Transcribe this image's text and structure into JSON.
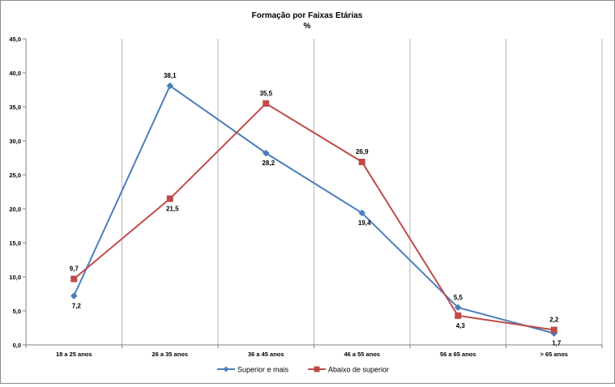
{
  "chart_data": {
    "type": "line",
    "title": "Formação por Faixas Etárias",
    "subtitle": "%",
    "categories": [
      "18 a 25 anos",
      "26 a 35 anos",
      "36 a 45 anos",
      "46 a 55 anos",
      "56 a 65 anos",
      "> 65 anos"
    ],
    "ylim": [
      0,
      45
    ],
    "y_ticks": [
      "0,0",
      "5,0",
      "10,0",
      "15,0",
      "20,0",
      "25,0",
      "30,0",
      "35,0",
      "40,0",
      "45,0"
    ],
    "grid": "vertical",
    "legend_position": "bottom",
    "series": [
      {
        "name": "Superior e mais",
        "color": "#4a7ebb",
        "marker": "diamond",
        "values": [
          7.2,
          38.1,
          28.2,
          19.4,
          5.5,
          1.7
        ],
        "labels": [
          "7,2",
          "38,1",
          "28,2",
          "19,4",
          "5,5",
          "1,7"
        ]
      },
      {
        "name": "Abaixo de superior",
        "color": "#be4b48",
        "marker": "square",
        "values": [
          9.7,
          21.5,
          35.5,
          26.9,
          4.3,
          2.2
        ],
        "labels": [
          "9,7",
          "21,5",
          "35,5",
          "26,9",
          "4,3",
          "2,2"
        ]
      }
    ]
  }
}
